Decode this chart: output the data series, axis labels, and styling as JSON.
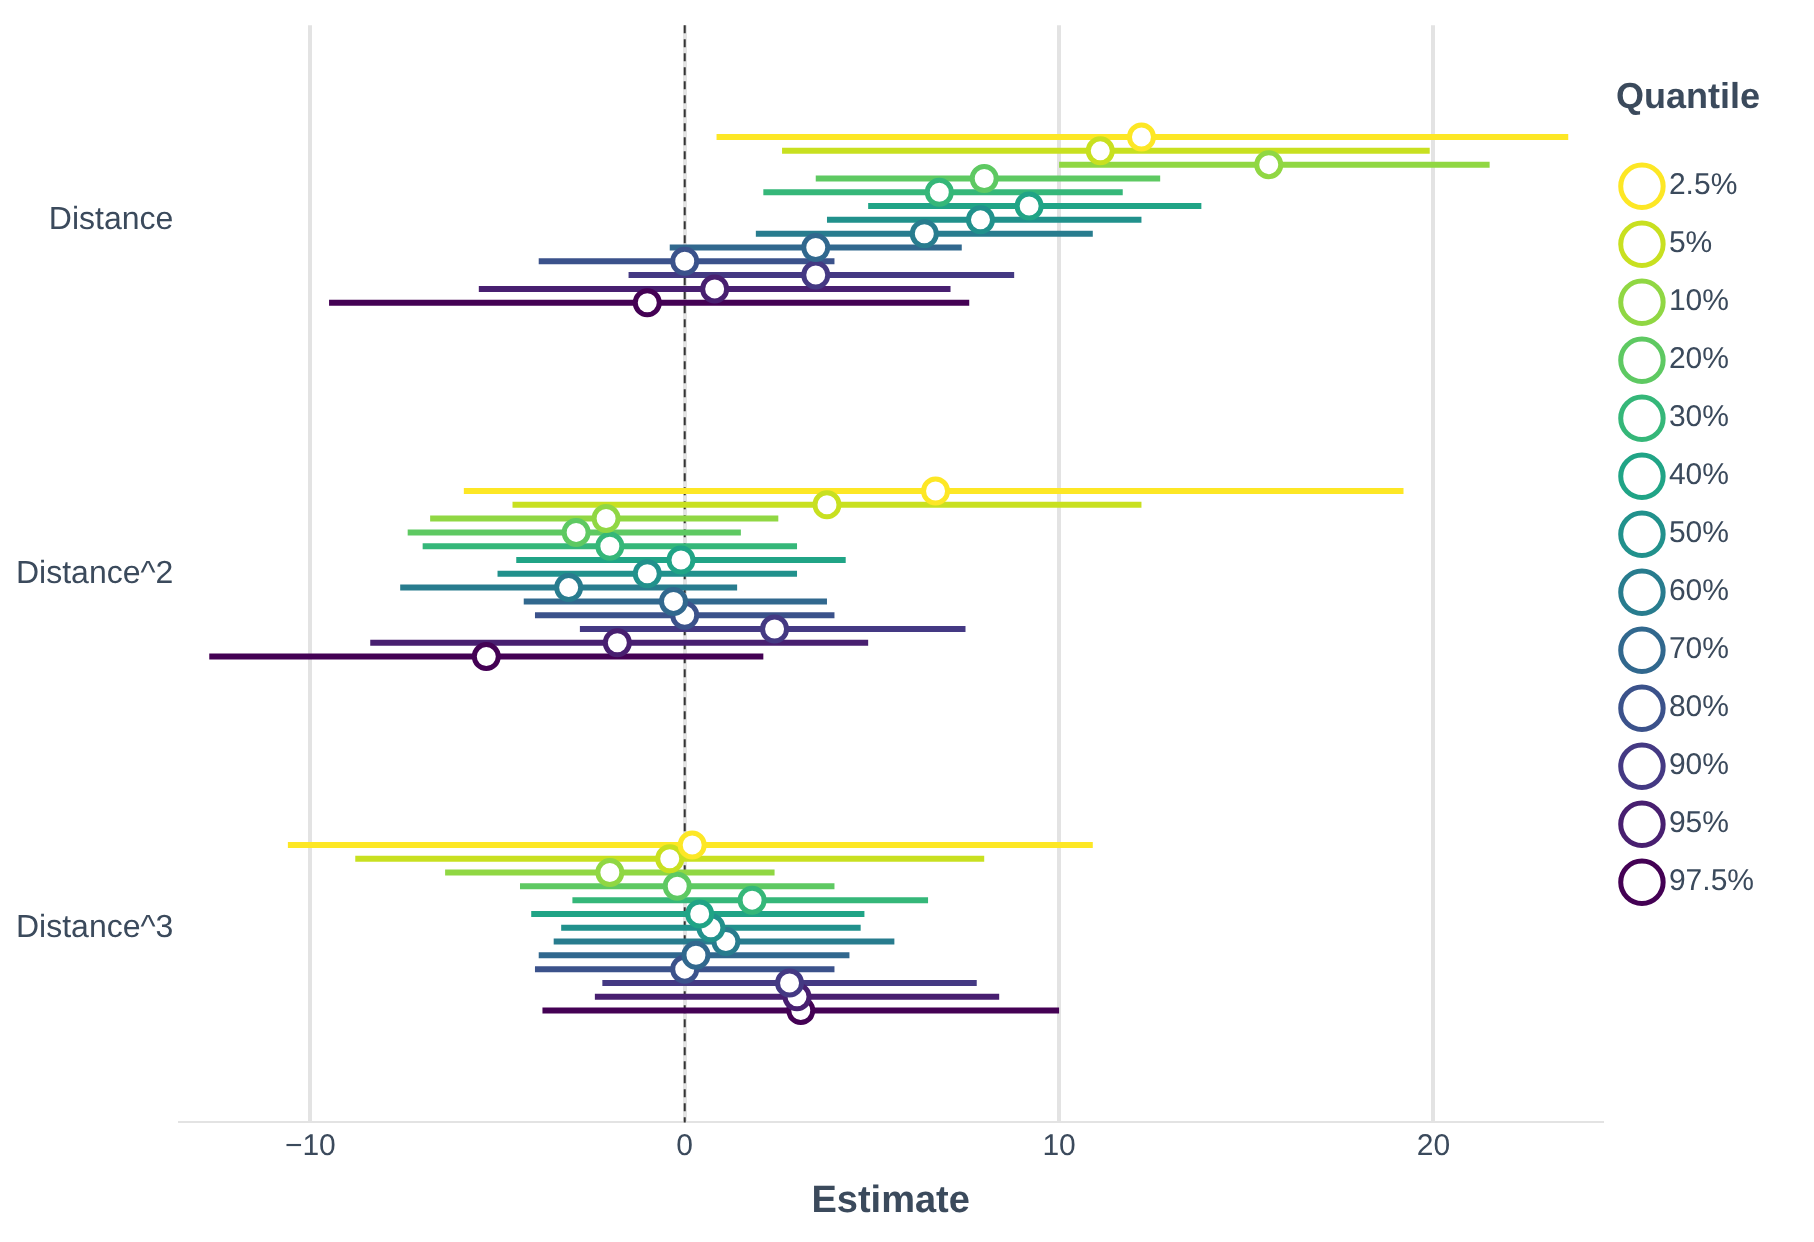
{
  "chart_data": {
    "type": "scatter",
    "orientation": "horizontal",
    "xlabel": "Estimate",
    "legend_title": "Quantile",
    "legend": "right",
    "grid": "x",
    "marker": "circle",
    "categories": [
      "Distance",
      "Distance^2",
      "Distance^3"
    ],
    "xlim": [
      -13.5,
      24.5
    ],
    "xticks": [
      {
        "value": -10,
        "label": "−10"
      },
      0,
      10,
      20
    ],
    "ref_lines": [
      {
        "axis": "x",
        "value": 0,
        "line_style": "dashed",
        "color": "#333333"
      }
    ],
    "series": [
      {
        "name": "2.5%",
        "color": "#fde725",
        "values": [
          12.2,
          6.7,
          0.2
        ],
        "errors": [
          [
            0.85,
            23.6
          ],
          [
            -5.9,
            19.2
          ],
          [
            -10.6,
            10.9
          ]
        ]
      },
      {
        "name": "5%",
        "color": "#c8e020",
        "values": [
          11.1,
          3.8,
          -0.4
        ],
        "errors": [
          [
            2.6,
            19.9
          ],
          [
            -4.6,
            12.2
          ],
          [
            -8.8,
            8.0
          ]
        ]
      },
      {
        "name": "10%",
        "color": "#90d743",
        "values": [
          15.6,
          -2.1,
          -2.0
        ],
        "errors": [
          [
            10.0,
            21.5
          ],
          [
            -6.8,
            2.5
          ],
          [
            -6.4,
            2.4
          ]
        ]
      },
      {
        "name": "20%",
        "color": "#5ec962",
        "values": [
          8.0,
          -2.9,
          -0.2
        ],
        "errors": [
          [
            3.5,
            12.7
          ],
          [
            -7.4,
            1.5
          ],
          [
            -4.4,
            4.0
          ]
        ]
      },
      {
        "name": "30%",
        "color": "#35b779",
        "values": [
          6.8,
          -2.0,
          1.8
        ],
        "errors": [
          [
            2.1,
            11.7
          ],
          [
            -7.0,
            3.0
          ],
          [
            -3.0,
            6.5
          ]
        ]
      },
      {
        "name": "40%",
        "color": "#20a486",
        "values": [
          9.2,
          -0.1,
          0.4
        ],
        "errors": [
          [
            4.9,
            13.8
          ],
          [
            -4.5,
            4.3
          ],
          [
            -4.1,
            4.8
          ]
        ]
      },
      {
        "name": "50%",
        "color": "#21918c",
        "values": [
          7.9,
          -1.0,
          0.7
        ],
        "errors": [
          [
            3.8,
            12.2
          ],
          [
            -5.0,
            3.0
          ],
          [
            -3.3,
            4.7
          ]
        ]
      },
      {
        "name": "60%",
        "color": "#287c8e",
        "values": [
          6.4,
          -3.1,
          1.1
        ],
        "errors": [
          [
            1.9,
            10.9
          ],
          [
            -7.6,
            1.4
          ],
          [
            -3.5,
            5.6
          ]
        ]
      },
      {
        "name": "70%",
        "color": "#31688e",
        "values": [
          3.5,
          -0.3,
          0.3
        ],
        "errors": [
          [
            -0.4,
            7.4
          ],
          [
            -4.3,
            3.8
          ],
          [
            -3.9,
            4.4
          ]
        ]
      },
      {
        "name": "80%",
        "color": "#3b528b",
        "values": [
          0.0,
          0.0,
          0.0
        ],
        "errors": [
          [
            -3.9,
            4.0
          ],
          [
            -4.0,
            4.0
          ],
          [
            -4.0,
            4.0
          ]
        ]
      },
      {
        "name": "90%",
        "color": "#443983",
        "values": [
          3.5,
          2.4,
          2.8
        ],
        "errors": [
          [
            -1.5,
            8.8
          ],
          [
            -2.8,
            7.5
          ],
          [
            -2.2,
            7.8
          ]
        ]
      },
      {
        "name": "95%",
        "color": "#481f70",
        "values": [
          0.8,
          -1.8,
          3.0
        ],
        "errors": [
          [
            -5.5,
            7.1
          ],
          [
            -8.4,
            4.9
          ],
          [
            -2.4,
            8.4
          ]
        ]
      },
      {
        "name": "97.5%",
        "color": "#440154",
        "values": [
          -1.0,
          -5.3,
          3.1
        ],
        "errors": [
          [
            -9.5,
            7.6
          ],
          [
            -12.7,
            2.1
          ],
          [
            -3.8,
            10.0
          ]
        ]
      }
    ]
  }
}
